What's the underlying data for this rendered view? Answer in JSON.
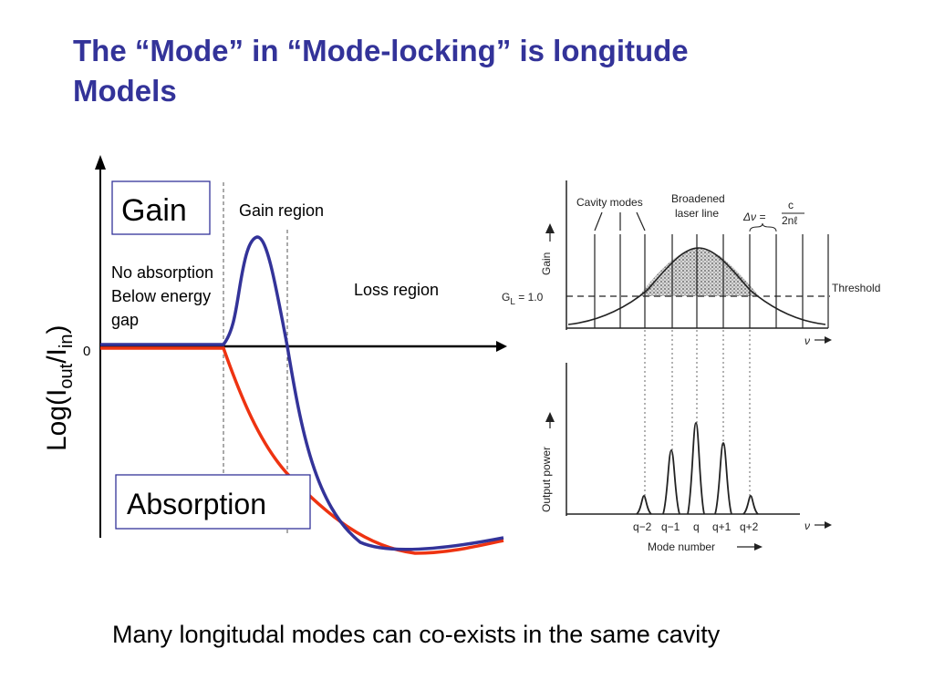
{
  "slide": {
    "title_line1": "The “Mode” in “Mode-locking” is longitude",
    "title_line2": "Models",
    "caption": "Many longitudal modes can co-exists in the same cavity"
  },
  "left_plot": {
    "y_axis_label_main": "Log(I",
    "y_axis_label_sub1": "out",
    "y_axis_label_mid": "/I",
    "y_axis_label_sub2": "in",
    "y_axis_label_end": ")",
    "zero_tick": "0",
    "gain_box": "Gain",
    "absorption_box": "Absorption",
    "gain_region": "Gain region",
    "no_absorption_line1": "No absorption",
    "no_absorption_line2": "Below energy",
    "no_absorption_line3": "gap",
    "loss_region": "Loss region",
    "colors": {
      "gain_curve": "#333399",
      "absorption_curve": "#ee3311"
    }
  },
  "right_top": {
    "cavity_modes": "Cavity modes",
    "broadened_line1": "Broadened",
    "broadened_line2": "laser line",
    "spacing_delta": "Δν =",
    "spacing_num": "c",
    "spacing_den": "2nℓ",
    "y_label": "Gain",
    "threshold_label": "G",
    "threshold_sub": "L",
    "threshold_value": " = 1.0",
    "threshold_text": "Threshold",
    "x_label": "ν"
  },
  "right_bottom": {
    "y_label": "Output power",
    "mode_labels": [
      "q−2",
      "q−1",
      "q",
      "q+1",
      "q+2"
    ],
    "x_label": "ν",
    "x_axis_title": "Mode number"
  }
}
